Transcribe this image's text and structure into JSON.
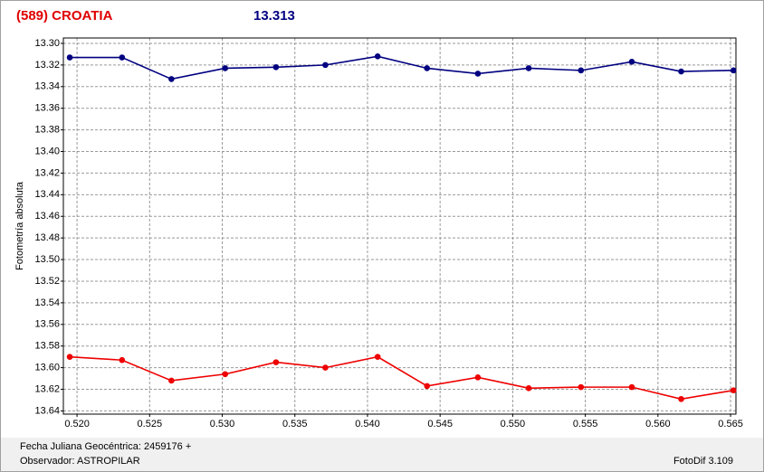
{
  "chart_data": {
    "type": "line",
    "title": "(589) CROATIA",
    "magnitude": 13.313,
    "ylabel": "Fotometría absoluta",
    "footer_left": [
      "Fecha Juliana Geocéntrica: 2459176 +",
      "Observador: ASTROPILAR"
    ],
    "footer_right": "FotoDif 3.109",
    "invert_y": true,
    "grid": true,
    "xlim": [
      0.51906,
      0.56537
    ],
    "ylim": [
      13.295,
      13.643
    ],
    "xticks": [
      {
        "value": 0.52,
        "label": "0.520"
      },
      {
        "value": 0.525,
        "label": "0.525"
      },
      {
        "value": 0.53,
        "label": "0.530"
      },
      {
        "value": 0.535,
        "label": "0.535"
      },
      {
        "value": 0.54,
        "label": "0.540"
      },
      {
        "value": 0.545,
        "label": "0.545"
      },
      {
        "value": 0.55,
        "label": "0.550"
      },
      {
        "value": 0.555,
        "label": "0.555"
      },
      {
        "value": 0.56,
        "label": "0.560"
      },
      {
        "value": 0.565,
        "label": "0.565"
      }
    ],
    "yticks": [
      {
        "value": 13.3,
        "label": "13.30"
      },
      13.32,
      13.34,
      13.36,
      13.38,
      {
        "value": 13.4,
        "label": "13.40"
      },
      13.42,
      13.44,
      13.46,
      13.48,
      {
        "value": 13.5,
        "label": "13.50"
      },
      13.52,
      13.54,
      13.56,
      13.58,
      {
        "value": 13.6,
        "label": "13.60"
      },
      13.62,
      13.64
    ],
    "x": [
      0.5195,
      0.5231,
      0.5265,
      0.5302,
      0.5337,
      0.5371,
      0.5407,
      0.5441,
      0.5476,
      0.5511,
      0.5547,
      0.5582,
      0.5616,
      0.5652
    ],
    "series": [
      {
        "color": "#000080",
        "values": [
          13.313,
          13.313,
          13.333,
          13.323,
          13.322,
          13.32,
          13.312,
          13.323,
          13.328,
          13.323,
          13.325,
          13.317,
          13.326,
          13.325
        ]
      },
      {
        "color": "#ee0000",
        "values": [
          13.59,
          13.593,
          13.612,
          13.606,
          13.595,
          13.6,
          13.59,
          13.617,
          13.609,
          13.619,
          13.618,
          13.618,
          13.629,
          13.621
        ]
      }
    ]
  }
}
